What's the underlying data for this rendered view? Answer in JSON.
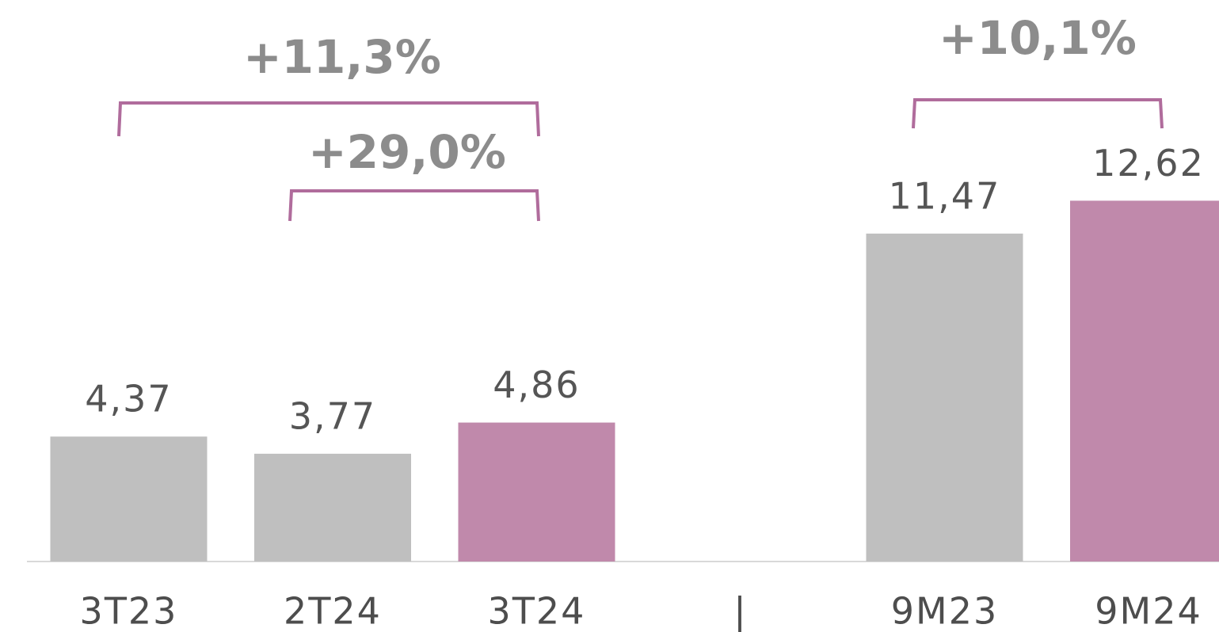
{
  "chart_data": {
    "type": "bar",
    "categories": [
      "3T23",
      "2T24",
      "3T24",
      "|",
      "9M23",
      "9M24"
    ],
    "values": [
      4.37,
      3.77,
      4.86,
      null,
      11.47,
      12.62
    ],
    "value_labels": [
      "4,37",
      "3,77",
      "4,86",
      null,
      "11,47",
      "12,62"
    ],
    "colors": [
      "#bfbfbf",
      "#bfbfbf",
      "#c089ab",
      null,
      "#bfbfbf",
      "#c089ab"
    ],
    "annotations": [
      "+11,3%",
      "+29,0%",
      "+10,1%"
    ]
  }
}
